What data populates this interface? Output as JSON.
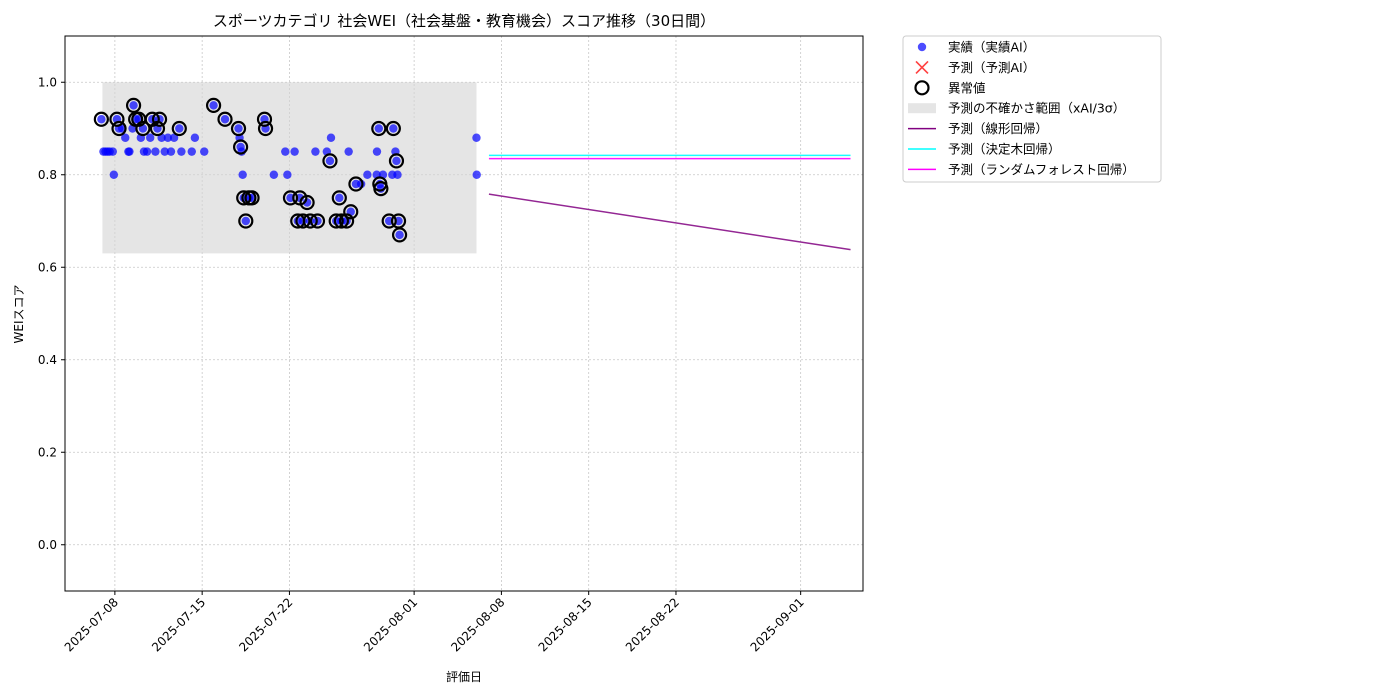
{
  "chart_data": {
    "type": "scatter",
    "title": "スポーツカテゴリ 社会WEI（社会基盤・教育機会）スコア推移（30日間）",
    "xlabel": "評価日",
    "ylabel": "WEIスコア",
    "xlim": [
      "2025-07-04",
      "2025-09-06"
    ],
    "ylim": [
      -0.1,
      1.1
    ],
    "y_ticks": [
      0.0,
      0.2,
      0.4,
      0.6,
      0.8,
      1.0
    ],
    "y_tick_labels": [
      "0.0",
      "0.2",
      "0.4",
      "0.6",
      "0.8",
      "1.0"
    ],
    "x_ticks": [
      "2025-07-08",
      "2025-07-15",
      "2025-07-22",
      "2025-08-01",
      "2025-08-08",
      "2025-08-15",
      "2025-08-22",
      "2025-09-01"
    ],
    "grid": true,
    "legend_position": "outside-top-right",
    "colors": {
      "actual": "#0000ff",
      "predicted": "#ff0000",
      "anomaly": "#000000",
      "band": "#d3d3d3",
      "linear": "#800080",
      "tree": "#00ffff",
      "forest": "#ff00ff"
    },
    "legend": [
      {
        "key": "actual",
        "label": "実績（実績AI）"
      },
      {
        "key": "predicted",
        "label": "予測（予測AI）"
      },
      {
        "key": "anomaly",
        "label": "異常値"
      },
      {
        "key": "band",
        "label": "予測の不確かさ範囲（xAI/3σ）"
      },
      {
        "key": "linear",
        "label": "予測（線形回帰）"
      },
      {
        "key": "tree",
        "label": "予測（決定木回帰）"
      },
      {
        "key": "forest",
        "label": "予測（ランダムフォレスト回帰）"
      }
    ],
    "uncertainty_band": {
      "x": [
        "2025-07-07",
        "2025-08-06"
      ],
      "y": [
        0.63,
        1.0
      ]
    },
    "series": [
      {
        "name": "実績（実績AI）",
        "points": [
          [
            "2025-07-06 22:00",
            0.92
          ],
          [
            "2025-07-07 02:00",
            0.85
          ],
          [
            "2025-07-07 06:00",
            0.85
          ],
          [
            "2025-07-07 10:00",
            0.85
          ],
          [
            "2025-07-07 14:00",
            0.85
          ],
          [
            "2025-07-07 20:00",
            0.85
          ],
          [
            "2025-07-07 22:00",
            0.8
          ],
          [
            "2025-07-08 04:00",
            0.92
          ],
          [
            "2025-07-08 08:00",
            0.9
          ],
          [
            "2025-07-08 14:00",
            0.9
          ],
          [
            "2025-07-08 20:00",
            0.88
          ],
          [
            "2025-07-09 02:00",
            0.85
          ],
          [
            "2025-07-09 04:00",
            0.85
          ],
          [
            "2025-07-09 10:00",
            0.9
          ],
          [
            "2025-07-09 12:00",
            0.95
          ],
          [
            "2025-07-09 16:00",
            0.92
          ],
          [
            "2025-07-09 22:00",
            0.92
          ],
          [
            "2025-07-10 02:00",
            0.88
          ],
          [
            "2025-07-10 06:00",
            0.9
          ],
          [
            "2025-07-10 08:00",
            0.85
          ],
          [
            "2025-07-10 14:00",
            0.85
          ],
          [
            "2025-07-10 20:00",
            0.88
          ],
          [
            "2025-07-11 00:00",
            0.92
          ],
          [
            "2025-07-11 06:00",
            0.85
          ],
          [
            "2025-07-11 10:00",
            0.9
          ],
          [
            "2025-07-11 14:00",
            0.92
          ],
          [
            "2025-07-11 18:00",
            0.88
          ],
          [
            "2025-07-12 00:00",
            0.85
          ],
          [
            "2025-07-12 06:00",
            0.88
          ],
          [
            "2025-07-12 12:00",
            0.85
          ],
          [
            "2025-07-12 18:00",
            0.88
          ],
          [
            "2025-07-13 04:00",
            0.9
          ],
          [
            "2025-07-13 08:00",
            0.85
          ],
          [
            "2025-07-14 04:00",
            0.85
          ],
          [
            "2025-07-14 10:00",
            0.88
          ],
          [
            "2025-07-15 04:00",
            0.85
          ],
          [
            "2025-07-15 22:00",
            0.95
          ],
          [
            "2025-07-16 20:00",
            0.92
          ],
          [
            "2025-07-17 22:00",
            0.9
          ],
          [
            "2025-07-18 00:00",
            0.88
          ],
          [
            "2025-07-18 02:00",
            0.86
          ],
          [
            "2025-07-18 04:00",
            0.85
          ],
          [
            "2025-07-18 06:00",
            0.8
          ],
          [
            "2025-07-18 08:00",
            0.75
          ],
          [
            "2025-07-18 12:00",
            0.7
          ],
          [
            "2025-07-18 18:00",
            0.75
          ],
          [
            "2025-07-19 00:00",
            0.75
          ],
          [
            "2025-07-20 00:00",
            0.92
          ],
          [
            "2025-07-20 02:00",
            0.9
          ],
          [
            "2025-07-20 18:00",
            0.8
          ],
          [
            "2025-07-21 16:00",
            0.85
          ],
          [
            "2025-07-21 20:00",
            0.8
          ],
          [
            "2025-07-22 02:00",
            0.75
          ],
          [
            "2025-07-22 10:00",
            0.85
          ],
          [
            "2025-07-22 16:00",
            0.7
          ],
          [
            "2025-07-22 20:00",
            0.75
          ],
          [
            "2025-07-23 02:00",
            0.7
          ],
          [
            "2025-07-23 10:00",
            0.74
          ],
          [
            "2025-07-23 16:00",
            0.7
          ],
          [
            "2025-07-24 02:00",
            0.85
          ],
          [
            "2025-07-24 06:00",
            0.7
          ],
          [
            "2025-07-25 00:00",
            0.85
          ],
          [
            "2025-07-25 06:00",
            0.83
          ],
          [
            "2025-07-25 08:00",
            0.88
          ],
          [
            "2025-07-25 18:00",
            0.7
          ],
          [
            "2025-07-26 00:00",
            0.75
          ],
          [
            "2025-07-26 04:00",
            0.7
          ],
          [
            "2025-07-26 14:00",
            0.7
          ],
          [
            "2025-07-26 18:00",
            0.85
          ],
          [
            "2025-07-26 22:00",
            0.72
          ],
          [
            "2025-07-27 08:00",
            0.78
          ],
          [
            "2025-07-27 18:00",
            0.78
          ],
          [
            "2025-07-28 06:00",
            0.8
          ],
          [
            "2025-07-29 00:00",
            0.8
          ],
          [
            "2025-07-29 00:30",
            0.85
          ],
          [
            "2025-07-29 04:00",
            0.9
          ],
          [
            "2025-07-29 06:00",
            0.78
          ],
          [
            "2025-07-29 08:00",
            0.77
          ],
          [
            "2025-07-29 12:00",
            0.8
          ],
          [
            "2025-07-30 00:00",
            0.7
          ],
          [
            "2025-07-30 06:00",
            0.8
          ],
          [
            "2025-07-30 08:00",
            0.9
          ],
          [
            "2025-07-30 12:00",
            0.85
          ],
          [
            "2025-07-30 14:00",
            0.83
          ],
          [
            "2025-07-30 16:00",
            0.8
          ],
          [
            "2025-07-30 18:00",
            0.7
          ],
          [
            "2025-07-30 20:00",
            0.67
          ],
          [
            "2025-08-06 00:00",
            0.88
          ],
          [
            "2025-08-06 00:30",
            0.8
          ]
        ]
      },
      {
        "name": "異常値",
        "points": [
          [
            "2025-07-06 22:00",
            0.92
          ],
          [
            "2025-07-08 04:00",
            0.92
          ],
          [
            "2025-07-08 08:00",
            0.9
          ],
          [
            "2025-07-09 12:00",
            0.95
          ],
          [
            "2025-07-09 16:00",
            0.92
          ],
          [
            "2025-07-09 22:00",
            0.92
          ],
          [
            "2025-07-10 06:00",
            0.9
          ],
          [
            "2025-07-11 00:00",
            0.92
          ],
          [
            "2025-07-11 10:00",
            0.9
          ],
          [
            "2025-07-11 14:00",
            0.92
          ],
          [
            "2025-07-13 04:00",
            0.9
          ],
          [
            "2025-07-15 22:00",
            0.95
          ],
          [
            "2025-07-16 20:00",
            0.92
          ],
          [
            "2025-07-17 22:00",
            0.9
          ],
          [
            "2025-07-18 02:00",
            0.86
          ],
          [
            "2025-07-18 08:00",
            0.75
          ],
          [
            "2025-07-18 12:00",
            0.7
          ],
          [
            "2025-07-18 18:00",
            0.75
          ],
          [
            "2025-07-19 00:00",
            0.75
          ],
          [
            "2025-07-20 00:00",
            0.92
          ],
          [
            "2025-07-20 02:00",
            0.9
          ],
          [
            "2025-07-22 02:00",
            0.75
          ],
          [
            "2025-07-22 16:00",
            0.7
          ],
          [
            "2025-07-22 20:00",
            0.75
          ],
          [
            "2025-07-23 02:00",
            0.7
          ],
          [
            "2025-07-23 10:00",
            0.74
          ],
          [
            "2025-07-23 16:00",
            0.7
          ],
          [
            "2025-07-24 06:00",
            0.7
          ],
          [
            "2025-07-25 06:00",
            0.83
          ],
          [
            "2025-07-25 18:00",
            0.7
          ],
          [
            "2025-07-26 00:00",
            0.75
          ],
          [
            "2025-07-26 04:00",
            0.7
          ],
          [
            "2025-07-26 14:00",
            0.7
          ],
          [
            "2025-07-26 22:00",
            0.72
          ],
          [
            "2025-07-27 08:00",
            0.78
          ],
          [
            "2025-07-29 04:00",
            0.9
          ],
          [
            "2025-07-29 06:00",
            0.78
          ],
          [
            "2025-07-29 08:00",
            0.77
          ],
          [
            "2025-07-30 00:00",
            0.7
          ],
          [
            "2025-07-30 08:00",
            0.9
          ],
          [
            "2025-07-30 14:00",
            0.83
          ],
          [
            "2025-07-30 18:00",
            0.7
          ],
          [
            "2025-07-30 20:00",
            0.67
          ]
        ]
      },
      {
        "name": "予測（線形回帰）",
        "points": [
          [
            "2025-08-07",
            0.758
          ],
          [
            "2025-09-05",
            0.638
          ]
        ]
      },
      {
        "name": "予測（決定木回帰）",
        "points": [
          [
            "2025-08-07",
            0.842
          ],
          [
            "2025-09-05",
            0.842
          ]
        ]
      },
      {
        "name": "予測（ランダムフォレスト回帰）",
        "points": [
          [
            "2025-08-07",
            0.835
          ],
          [
            "2025-09-05",
            0.835
          ]
        ]
      }
    ]
  }
}
